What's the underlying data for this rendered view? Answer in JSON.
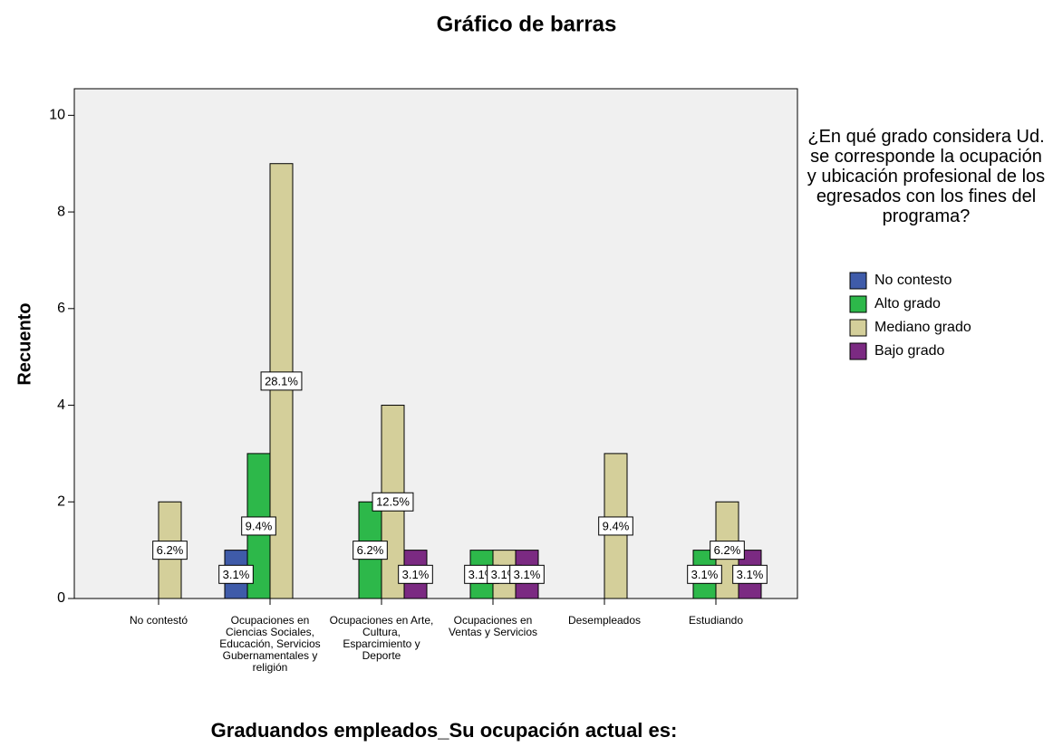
{
  "chart_data": {
    "type": "bar",
    "title": "Gráfico de barras",
    "x_label": "Graduandos empleados_Su ocupación actual es:",
    "y_label": "Recuento",
    "legend_title": "¿En qué grado considera Ud. se corresponde la ocupación y ubicación profesional de los egresados con los fines del programa?",
    "categories": [
      "No contestó",
      "Ocupaciones en Ciencias Sociales, Educación, Servicios Gubernamentales y religión",
      "Ocupaciones en Arte, Cultura, Esparcimiento y Deporte",
      "Ocupaciones en Ventas y Servicios",
      "Desempleados",
      "Estudiando"
    ],
    "series": [
      {
        "name": "No contesto",
        "color": "#3f5ba9",
        "values": [
          null,
          1,
          null,
          null,
          null,
          null
        ],
        "data_labels": [
          null,
          "3.1%",
          null,
          null,
          null,
          null
        ]
      },
      {
        "name": "Alto grado",
        "color": "#2db84a",
        "values": [
          null,
          3,
          2,
          1,
          null,
          1
        ],
        "data_labels": [
          null,
          "9.4%",
          "6.2%",
          "3.1%",
          null,
          "3.1%"
        ]
      },
      {
        "name": "Mediano grado",
        "color": "#d4cf9a",
        "values": [
          2,
          9,
          4,
          1,
          3,
          2
        ],
        "data_labels": [
          "6.2%",
          "28.1%",
          "12.5%",
          "3.1%",
          "9.4%",
          "6.2%"
        ]
      },
      {
        "name": "Bajo grado",
        "color": "#7b2a82",
        "values": [
          null,
          null,
          1,
          1,
          null,
          1
        ],
        "data_labels": [
          null,
          null,
          "3.1%",
          "3.1%",
          null,
          "3.1%"
        ]
      }
    ],
    "ylim": [
      0,
      10.55
    ],
    "yticks": [
      0,
      2,
      4,
      6,
      8,
      10
    ],
    "grid": false,
    "legend": "right"
  }
}
